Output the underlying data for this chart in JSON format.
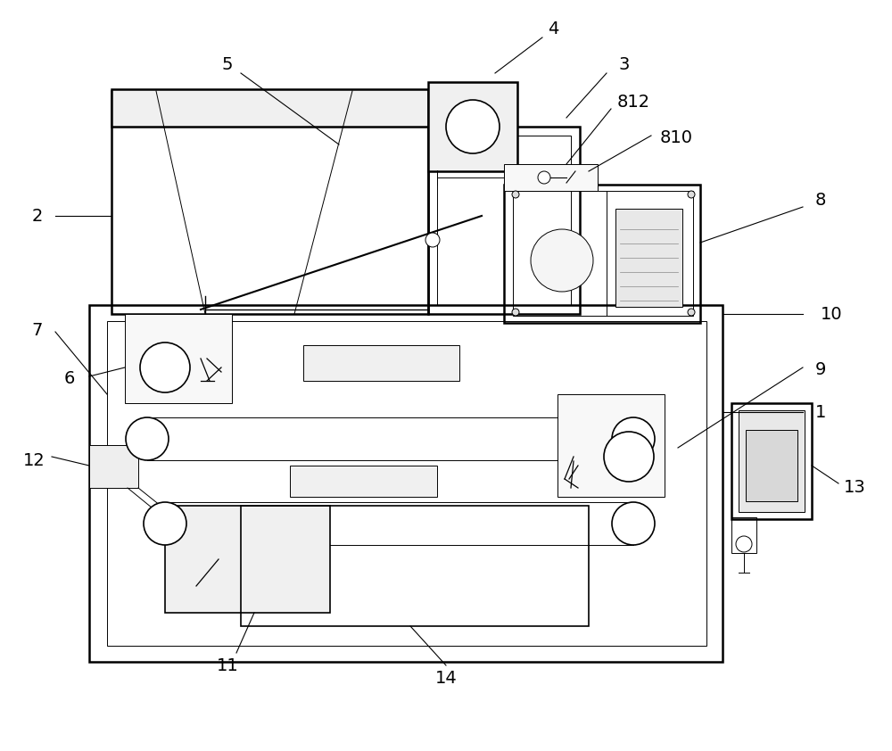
{
  "bg_color": "#ffffff",
  "line_color": "#000000",
  "fig_width": 10.0,
  "fig_height": 8.42,
  "lw_main": 1.8,
  "lw_med": 1.2,
  "lw_thin": 0.7,
  "label_fs": 14
}
